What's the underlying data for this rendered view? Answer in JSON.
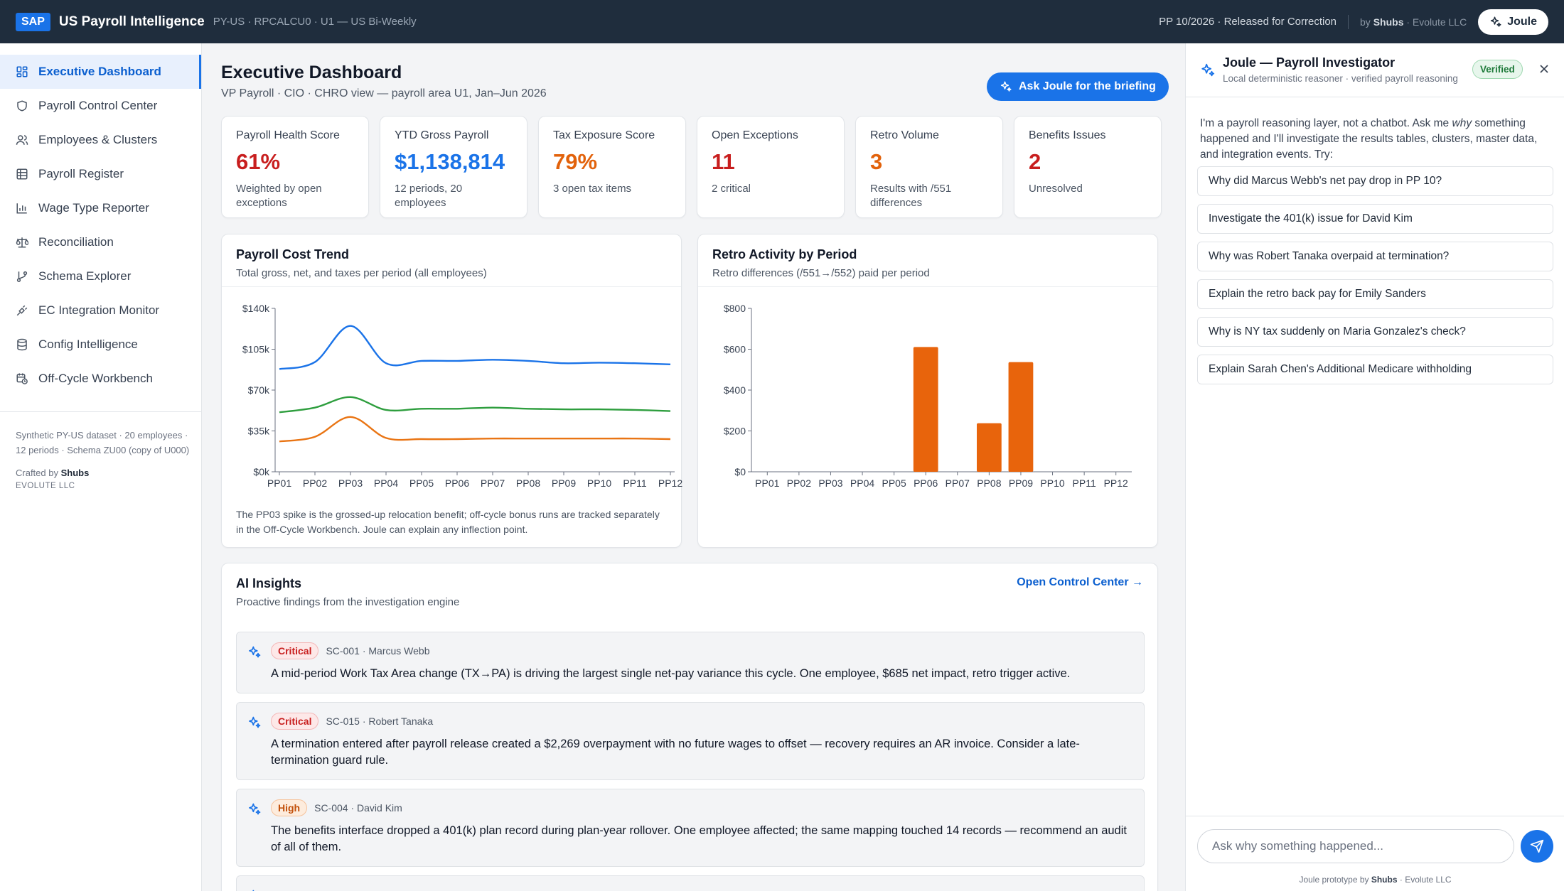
{
  "topbar": {
    "badge": "SAP",
    "title": "US Payroll Intelligence",
    "subtitle": "PY-US · RPCALCU0 · U1 — US Bi-Weekly",
    "period_status": "PP 10/2026 · Released for Correction",
    "by_prefix": "by",
    "by_name": "Shubs",
    "by_org": "· Evolute LLC",
    "joule_label": "Joule"
  },
  "sidebar": {
    "items": [
      {
        "label": "Executive Dashboard",
        "icon": "dashboard-grid-icon",
        "active": true
      },
      {
        "label": "Payroll Control Center",
        "icon": "shield-icon"
      },
      {
        "label": "Employees & Clusters",
        "icon": "users-icon"
      },
      {
        "label": "Payroll Register",
        "icon": "table-icon"
      },
      {
        "label": "Wage Type Reporter",
        "icon": "bar-chart-icon"
      },
      {
        "label": "Reconciliation",
        "icon": "scale-icon"
      },
      {
        "label": "Schema Explorer",
        "icon": "git-branch-icon"
      },
      {
        "label": "EC Integration Monitor",
        "icon": "plug-icon"
      },
      {
        "label": "Config Intelligence",
        "icon": "database-icon"
      },
      {
        "label": "Off-Cycle Workbench",
        "icon": "calendar-clock-icon"
      }
    ],
    "dataset_note": "Synthetic PY-US dataset · 20 employees · 12 periods · Schema ZU00 (copy of U000)",
    "crafted_prefix": "Crafted by",
    "crafted_name": "Shubs",
    "org": "EVOLUTE LLC"
  },
  "main": {
    "title": "Executive Dashboard",
    "subtitle": "VP Payroll · CIO · CHRO view — payroll area U1, Jan–Jun 2026",
    "briefing_button": "Ask Joule for the briefing",
    "kpis": [
      {
        "label": "Payroll Health Score",
        "value": "61%",
        "note": "Weighted by open exceptions",
        "color": "#c81e1e"
      },
      {
        "label": "YTD Gross Payroll",
        "value": "$1,138,814",
        "note": "12 periods, 20 employees",
        "color": "#1a73e8"
      },
      {
        "label": "Tax Exposure Score",
        "value": "79%",
        "note": "3 open tax items",
        "color": "#e2620b"
      },
      {
        "label": "Open Exceptions",
        "value": "11",
        "note": "2 critical",
        "color": "#c81e1e"
      },
      {
        "label": "Retro Volume",
        "value": "3",
        "note": "Results with /551 differences",
        "color": "#e2620b"
      },
      {
        "label": "Benefits Issues",
        "value": "2",
        "note": "Unresolved",
        "color": "#c81e1e"
      }
    ],
    "cost_trend": {
      "title": "Payroll Cost Trend",
      "subtitle": "Total gross, net, and taxes per period (all employees)",
      "note": "The PP03 spike is the grossed-up relocation benefit; off-cycle bonus runs are tracked separately in the Off-Cycle Workbench. Joule can explain any inflection point."
    },
    "retro": {
      "title": "Retro Activity by Period",
      "subtitle": "Retro differences (/551→/552) paid per period"
    },
    "insights": {
      "title": "AI Insights",
      "subtitle": "Proactive findings from the investigation engine",
      "link": "Open Control Center →",
      "items": [
        {
          "severity": "Critical",
          "ref": "SC-001 · Marcus Webb",
          "text": "A mid-period Work Tax Area change (TX→PA) is driving the largest single net-pay variance this cycle. One employee, $685 net impact, retro trigger active."
        },
        {
          "severity": "Critical",
          "ref": "SC-015 · Robert Tanaka",
          "text": "A termination entered after payroll release created a $2,269 overpayment with no future wages to offset — recovery requires an AR invoice. Consider a late-termination guard rule."
        },
        {
          "severity": "High",
          "ref": "SC-004 · David Kim",
          "text": "The benefits interface dropped a 401(k) plan record during plan-year rollover. One employee affected; the same mapping touched 14 records — recommend an audit of all of them."
        }
      ]
    }
  },
  "joule": {
    "title": "Joule — Payroll Investigator",
    "subtitle": "Local deterministic reasoner · verified payroll reasoning",
    "verified": "Verified",
    "intro_a": "I'm a payroll reasoning layer, not a chatbot. Ask me",
    "intro_em": "why",
    "intro_b": "something happened and I'll investigate the results tables, clusters, master data, and integration events. Try:",
    "prompts": [
      "Why did Marcus Webb's net pay drop in PP 10?",
      "Investigate the 401(k) issue for David Kim",
      "Why was Robert Tanaka overpaid at termination?",
      "Explain the retro back pay for Emily Sanders",
      "Why is NY tax suddenly on Maria Gonzalez's check?",
      "Explain Sarah Chen's Additional Medicare withholding"
    ],
    "input_placeholder": "Ask why something happened...",
    "footer_prefix": "Joule prototype by",
    "footer_name": "Shubs",
    "footer_org": "· Evolute LLC"
  },
  "chart_data": [
    {
      "type": "line",
      "title": "Payroll Cost Trend",
      "subtitle": "Total gross, net, and taxes per period (all employees)",
      "x": [
        "PP01",
        "PP02",
        "PP03",
        "PP04",
        "PP05",
        "PP06",
        "PP07",
        "PP08",
        "PP09",
        "PP10",
        "PP11",
        "PP12"
      ],
      "yticks": [
        "$0k",
        "$35k",
        "$70k",
        "$105k",
        "$140k"
      ],
      "ylim": [
        0,
        140000
      ],
      "series": [
        {
          "color": "#1a73e8",
          "values": [
            88000,
            94000,
            125000,
            93000,
            95000,
            95000,
            96000,
            95000,
            93000,
            93500,
            93000,
            92000
          ]
        },
        {
          "color": "#2e9e3e",
          "values": [
            51000,
            55000,
            64000,
            53000,
            54000,
            54000,
            55000,
            54000,
            53500,
            53500,
            53000,
            52000
          ]
        },
        {
          "color": "#e97413",
          "values": [
            26000,
            30000,
            47000,
            29000,
            28000,
            28000,
            28500,
            28500,
            28500,
            28500,
            28500,
            28000
          ]
        }
      ],
      "grid": false
    },
    {
      "type": "bar",
      "title": "Retro Activity by Period",
      "subtitle": "Retro differences (/551→/552) paid per period",
      "categories": [
        "PP01",
        "PP02",
        "PP03",
        "PP04",
        "PP05",
        "PP06",
        "PP07",
        "PP08",
        "PP09",
        "PP10",
        "PP11",
        "PP12"
      ],
      "values": [
        0,
        0,
        0,
        0,
        0,
        611,
        0,
        238,
        537,
        0,
        0,
        0
      ],
      "yticks": [
        "$0",
        "$200",
        "$400",
        "$600",
        "$800"
      ],
      "ylim": [
        0,
        800
      ],
      "color": "#e8640c",
      "grid": false
    }
  ]
}
